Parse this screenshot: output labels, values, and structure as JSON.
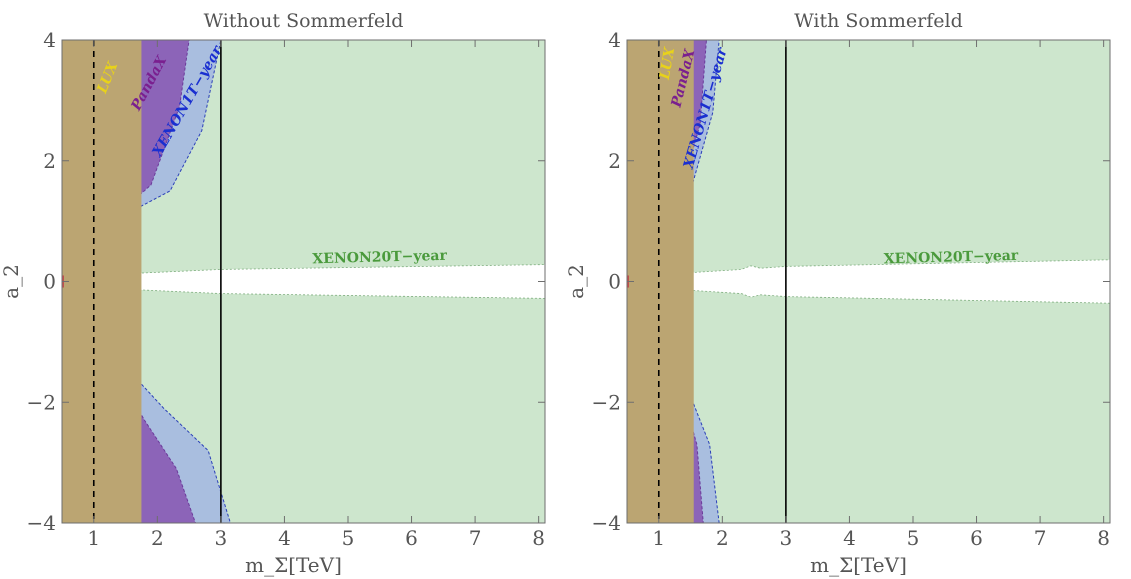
{
  "chart_data": [
    {
      "type": "area",
      "title": "Without Sommerfeld",
      "xlabel": "m_Σ[TeV]",
      "ylabel": "a_2",
      "xlim": [
        0.5,
        8.1
      ],
      "ylim": [
        -4,
        4
      ],
      "x_ticks": [
        "1",
        "2",
        "3",
        "4",
        "5",
        "6",
        "7",
        "8"
      ],
      "y_ticks": [
        "−4",
        "−2",
        "0",
        "2",
        "4"
      ],
      "vlines": [
        {
          "x": 1,
          "style": "dashed"
        },
        {
          "x": 3,
          "style": "solid"
        }
      ],
      "regions": [
        {
          "name": "XENON20T−year",
          "color": "#cde6cd",
          "label_color": "#4a9a3c",
          "gap_half_width": [
            [
              0.5,
              0.08
            ],
            [
              3.0,
              0.2
            ],
            [
              8.1,
              0.28
            ]
          ]
        },
        {
          "name": "XENON1T−year",
          "color": "#a9bedf",
          "label_color": "#1a2fd0",
          "boundary": [
            [
              3.0,
              4.0
            ],
            [
              2.7,
              2.5
            ],
            [
              2.2,
              1.5
            ],
            [
              1.3,
              1.0
            ],
            [
              0.8,
              0.78
            ],
            [
              0.5,
              0.55
            ],
            [
              0.5,
              -0.55
            ],
            [
              0.8,
              -0.75
            ],
            [
              1.4,
              -1.3
            ],
            [
              2.1,
              -2.1
            ],
            [
              2.8,
              -2.8
            ],
            [
              3.15,
              -4.0
            ]
          ]
        },
        {
          "name": "PandaX",
          "color": "#8c64b8",
          "label_color": "#7a1f8f",
          "boundary": [
            [
              2.5,
              4.0
            ],
            [
              2.35,
              2.9
            ],
            [
              1.9,
              1.6
            ],
            [
              1.2,
              0.95
            ],
            [
              0.8,
              0.72
            ],
            [
              0.5,
              0.45
            ],
            [
              0.5,
              -0.45
            ],
            [
              0.8,
              -0.7
            ],
            [
              1.3,
              -1.4
            ],
            [
              1.8,
              -2.3
            ],
            [
              2.3,
              -3.1
            ],
            [
              2.6,
              -4.0
            ]
          ]
        },
        {
          "name": "LUX",
          "color": "#bba572",
          "label_color": "#e8d21a",
          "boundary": [
            [
              1.75,
              4.0
            ],
            [
              1.75,
              -4.0
            ]
          ]
        }
      ]
    },
    {
      "type": "area",
      "title": "With Sommerfeld",
      "xlabel": "m_Σ[TeV]",
      "ylabel": "a_2",
      "xlim": [
        0.5,
        8.1
      ],
      "ylim": [
        -4,
        4
      ],
      "x_ticks": [
        "1",
        "2",
        "3",
        "4",
        "5",
        "6",
        "7",
        "8"
      ],
      "y_ticks": [
        "−4",
        "−2",
        "0",
        "2",
        "4"
      ],
      "vlines": [
        {
          "x": 1,
          "style": "dashed"
        },
        {
          "x": 3,
          "style": "solid"
        }
      ],
      "regions": [
        {
          "name": "XENON20T−year",
          "color": "#cde6cd",
          "label_color": "#4a9a3c",
          "gap_half_width": [
            [
              0.5,
              0.08
            ],
            [
              2.3,
              0.2
            ],
            [
              2.45,
              0.26
            ],
            [
              2.6,
              0.22
            ],
            [
              3.0,
              0.25
            ],
            [
              8.1,
              0.36
            ]
          ]
        },
        {
          "name": "XENON1T−year",
          "color": "#a9bedf",
          "label_color": "#1a2fd0",
          "boundary": [
            [
              1.95,
              4.0
            ],
            [
              1.85,
              2.8
            ],
            [
              1.5,
              1.5
            ],
            [
              1.0,
              0.9
            ],
            [
              0.7,
              0.75
            ],
            [
              0.5,
              0.55
            ],
            [
              0.5,
              -0.55
            ],
            [
              0.7,
              -0.75
            ],
            [
              1.0,
              -0.9
            ],
            [
              1.35,
              -1.5
            ],
            [
              1.8,
              -2.7
            ],
            [
              1.95,
              -4.0
            ]
          ]
        },
        {
          "name": "PandaX",
          "color": "#8c64b8",
          "label_color": "#7a1f8f",
          "boundary": [
            [
              1.75,
              4.0
            ],
            [
              1.65,
              2.6
            ],
            [
              1.35,
              1.5
            ],
            [
              1.0,
              1.05
            ],
            [
              0.7,
              0.72
            ],
            [
              0.5,
              0.5
            ],
            [
              0.5,
              -0.5
            ],
            [
              0.7,
              -0.72
            ],
            [
              1.0,
              -1.05
            ],
            [
              1.3,
              -1.6
            ],
            [
              1.6,
              -2.7
            ],
            [
              1.7,
              -4.0
            ]
          ]
        },
        {
          "name": "LUX",
          "color": "#bba572",
          "label_color": "#e8d21a",
          "boundary": [
            [
              1.55,
              4.0
            ],
            [
              1.55,
              -4.0
            ]
          ]
        }
      ]
    }
  ]
}
